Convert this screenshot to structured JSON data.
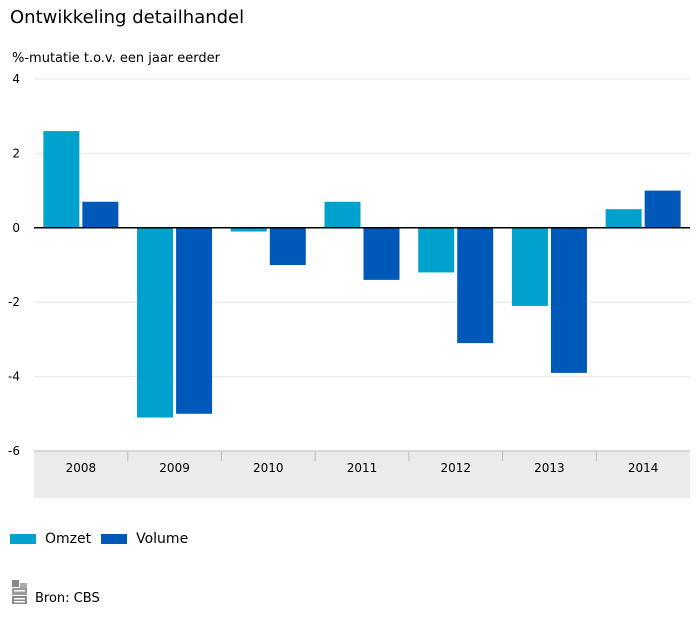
{
  "header": {
    "title": "Ontwikkeling detailhandel",
    "subtitle": "%-mutatie t.o.v. een jaar eerder"
  },
  "chart_data": {
    "type": "bar",
    "title": "Ontwikkeling detailhandel",
    "ylabel": "%-mutatie t.o.v. een jaar eerder",
    "xlabel": "",
    "categories": [
      "2008",
      "2009",
      "2010",
      "2011",
      "2012",
      "2013",
      "2014"
    ],
    "series": [
      {
        "name": "Omzet",
        "color": "#00a1cd",
        "values": [
          2.6,
          -5.1,
          -0.1,
          0.7,
          -1.2,
          -2.1,
          0.5
        ]
      },
      {
        "name": "Volume",
        "color": "#0058b8",
        "values": [
          0.7,
          -5.0,
          -1.0,
          -1.4,
          -3.1,
          -3.9,
          1.0
        ]
      }
    ],
    "ylim": [
      -6,
      4
    ],
    "yticks": [
      "4",
      "2",
      "0",
      "-2",
      "-4",
      "-6"
    ],
    "ytick_values": [
      4,
      2,
      0,
      -2,
      -4,
      -6
    ],
    "grid": true,
    "legend": "bottom-left"
  },
  "footer": {
    "source": "Bron: CBS",
    "logo_icon": "cbs-logo-icon"
  }
}
